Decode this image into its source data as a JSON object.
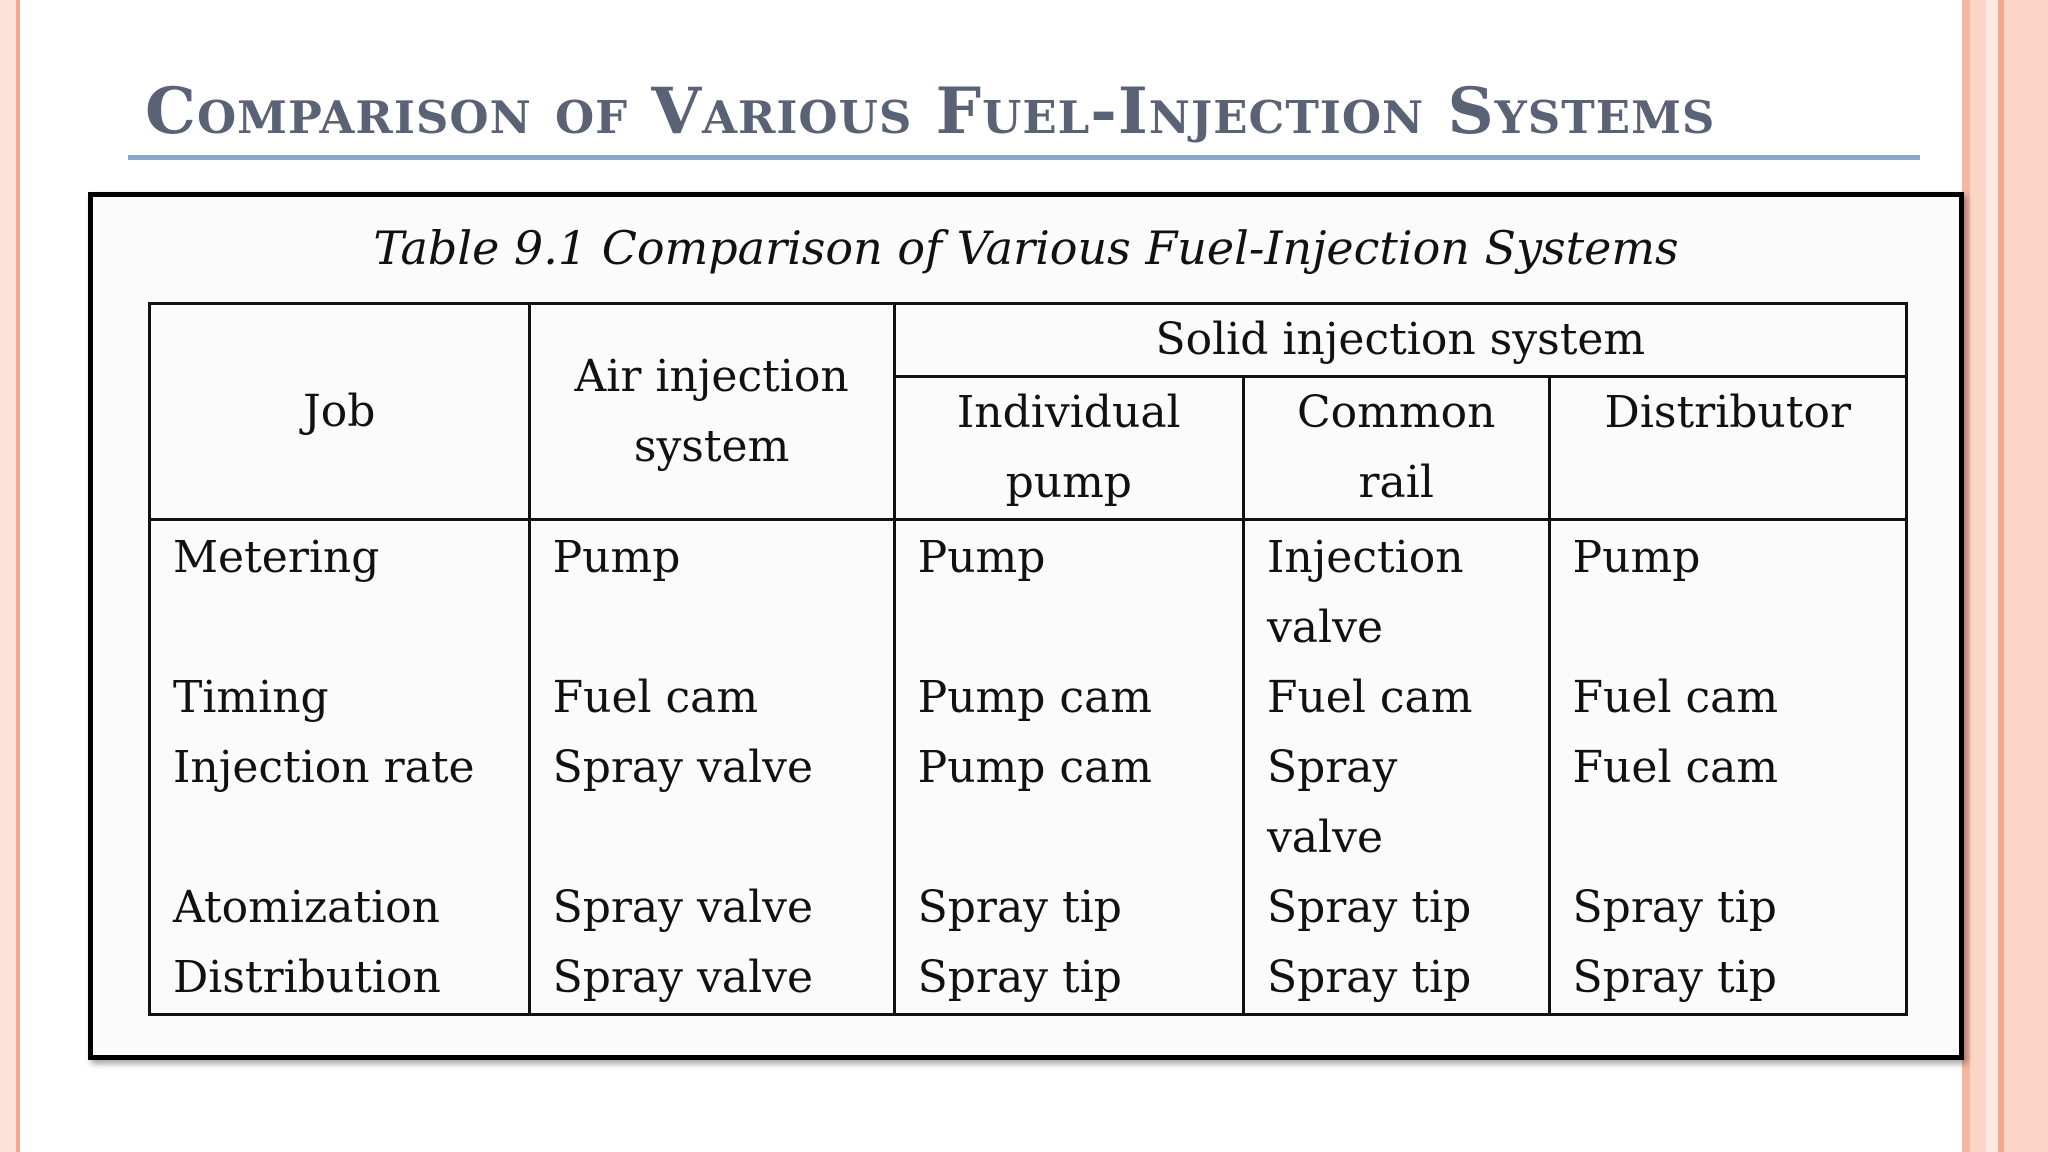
{
  "slide": {
    "title": "Comparison of Various Fuel-Injection Systems"
  },
  "table": {
    "caption": "Table 9.1  Comparison of Various Fuel-Injection Systems",
    "headers": {
      "job": "Job",
      "air": "Air injection system",
      "solid_group": "Solid injection system",
      "individual": "Individual pump",
      "common": "Common rail",
      "distributor": "Distributor"
    },
    "rows": [
      {
        "job": "Metering",
        "air": "Pump",
        "individual": "Pump",
        "common": "Injection valve",
        "distributor": "Pump"
      },
      {
        "job": "Timing",
        "air": "Fuel cam",
        "individual": "Pump cam",
        "common": "Fuel cam",
        "distributor": "Fuel cam"
      },
      {
        "job": "Injection rate",
        "air": "Spray valve",
        "individual": "Pump cam",
        "common": "Spray valve",
        "distributor": "Fuel cam"
      },
      {
        "job": "Atomization",
        "air": "Spray valve",
        "individual": "Spray tip",
        "common": "Spray tip",
        "distributor": "Spray tip"
      },
      {
        "job": "Distribution",
        "air": "Spray valve",
        "individual": "Spray tip",
        "common": "Spray tip",
        "distributor": "Spray tip"
      }
    ]
  },
  "colors": {
    "title_text": "#5a6275",
    "title_rule": "#8aa6d4",
    "edge_accent": "#f5b7a0"
  }
}
